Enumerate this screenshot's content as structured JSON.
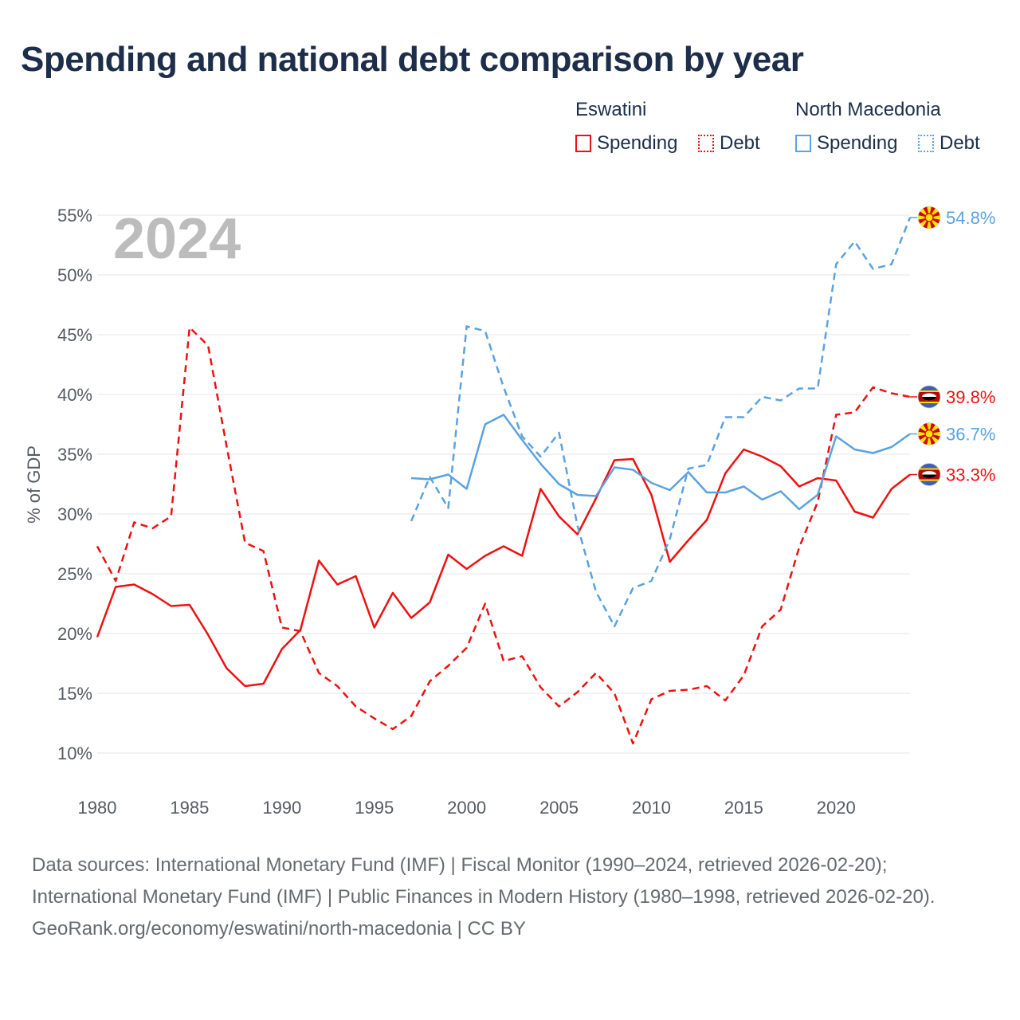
{
  "title": "Spending and national debt comparison by year",
  "legend": {
    "groups": [
      {
        "country": "Eswatini",
        "color": "#ee1111",
        "items": [
          {
            "label": "Spending",
            "style": "solid"
          },
          {
            "label": "Debt",
            "style": "dotted"
          }
        ]
      },
      {
        "country": "North Macedonia",
        "color": "#5aa2e0",
        "items": [
          {
            "label": "Spending",
            "style": "solid"
          },
          {
            "label": "Debt",
            "style": "dotted"
          }
        ]
      }
    ]
  },
  "footer": {
    "sources": "Data sources: International Monetary Fund (IMF) | Fiscal Monitor (1990–2024, retrieved 2026-02-20); International Monetary Fund (IMF) | Public Finances in Modern History (1980–1998, retrieved 2026-02-20).",
    "credit": "GeoRank.org/economy/eswatini/north-macedonia | CC BY"
  },
  "chart_data": {
    "type": "line",
    "title": "Spending and national debt comparison by year",
    "year_watermark": "2024",
    "xlabel": "",
    "ylabel": "% of GDP",
    "xlim": [
      1980,
      2024
    ],
    "ylim": [
      10,
      55
    ],
    "x_ticks": [
      1980,
      1985,
      1990,
      1995,
      2000,
      2005,
      2010,
      2015,
      2020
    ],
    "y_ticks": [
      10,
      15,
      20,
      25,
      30,
      35,
      40,
      45,
      50,
      55
    ],
    "y_tick_suffix": "%",
    "grid": true,
    "series": [
      {
        "name": "Eswatini Spending",
        "country": "Eswatini",
        "flag": "eswatini",
        "color": "#ee1111",
        "dash": "solid",
        "end_label": "33.3%",
        "points": [
          [
            1980,
            19.7
          ],
          [
            1981,
            23.9
          ],
          [
            1982,
            24.1
          ],
          [
            1983,
            23.3
          ],
          [
            1984,
            22.3
          ],
          [
            1985,
            22.4
          ],
          [
            1986,
            19.9
          ],
          [
            1987,
            17.1
          ],
          [
            1988,
            15.6
          ],
          [
            1989,
            15.8
          ],
          [
            1990,
            18.7
          ],
          [
            1991,
            20.3
          ],
          [
            1992,
            26.1
          ],
          [
            1993,
            24.1
          ],
          [
            1994,
            24.8
          ],
          [
            1995,
            20.5
          ],
          [
            1996,
            23.4
          ],
          [
            1997,
            21.3
          ],
          [
            1998,
            22.6
          ],
          [
            1999,
            26.6
          ],
          [
            2000,
            25.4
          ],
          [
            2001,
            26.5
          ],
          [
            2002,
            27.3
          ],
          [
            2003,
            26.5
          ],
          [
            2004,
            32.1
          ],
          [
            2005,
            29.8
          ],
          [
            2006,
            28.3
          ],
          [
            2007,
            31.3
          ],
          [
            2008,
            34.5
          ],
          [
            2009,
            34.6
          ],
          [
            2010,
            31.6
          ],
          [
            2011,
            26.0
          ],
          [
            2012,
            27.8
          ],
          [
            2013,
            29.5
          ],
          [
            2014,
            33.4
          ],
          [
            2015,
            35.4
          ],
          [
            2016,
            34.8
          ],
          [
            2017,
            34.0
          ],
          [
            2018,
            32.3
          ],
          [
            2019,
            33.0
          ],
          [
            2020,
            32.8
          ],
          [
            2021,
            30.2
          ],
          [
            2022,
            29.7
          ],
          [
            2023,
            32.1
          ],
          [
            2024,
            33.3
          ]
        ]
      },
      {
        "name": "Eswatini Debt",
        "country": "Eswatini",
        "flag": "eswatini",
        "color": "#ee1111",
        "dash": "dashed",
        "end_label": "39.8%",
        "points": [
          [
            1980,
            27.3
          ],
          [
            1981,
            24.4
          ],
          [
            1982,
            29.3
          ],
          [
            1983,
            28.8
          ],
          [
            1984,
            29.8
          ],
          [
            1985,
            45.6
          ],
          [
            1986,
            44.1
          ],
          [
            1987,
            35.7
          ],
          [
            1988,
            27.6
          ],
          [
            1989,
            26.9
          ],
          [
            1990,
            20.5
          ],
          [
            1991,
            20.2
          ],
          [
            1992,
            16.7
          ],
          [
            1993,
            15.6
          ],
          [
            1994,
            13.9
          ],
          [
            1995,
            12.9
          ],
          [
            1996,
            12.0
          ],
          [
            1997,
            13.1
          ],
          [
            1998,
            16.0
          ],
          [
            1999,
            17.3
          ],
          [
            2000,
            18.8
          ],
          [
            2001,
            22.5
          ],
          [
            2002,
            17.7
          ],
          [
            2003,
            18.1
          ],
          [
            2004,
            15.5
          ],
          [
            2005,
            13.9
          ],
          [
            2006,
            15.1
          ],
          [
            2007,
            16.7
          ],
          [
            2008,
            15.0
          ],
          [
            2009,
            10.8
          ],
          [
            2010,
            14.5
          ],
          [
            2011,
            15.2
          ],
          [
            2012,
            15.3
          ],
          [
            2013,
            15.6
          ],
          [
            2014,
            14.4
          ],
          [
            2015,
            16.5
          ],
          [
            2016,
            20.6
          ],
          [
            2017,
            22.0
          ],
          [
            2018,
            27.2
          ],
          [
            2019,
            31.0
          ],
          [
            2020,
            38.3
          ],
          [
            2021,
            38.5
          ],
          [
            2022,
            40.6
          ],
          [
            2023,
            40.1
          ],
          [
            2024,
            39.8
          ]
        ]
      },
      {
        "name": "North Macedonia Spending",
        "country": "North Macedonia",
        "flag": "north-macedonia",
        "color": "#5aa2e0",
        "dash": "solid",
        "end_label": "36.7%",
        "points": [
          [
            1997,
            33.0
          ],
          [
            1998,
            32.9
          ],
          [
            1999,
            33.3
          ],
          [
            2000,
            32.1
          ],
          [
            2001,
            37.5
          ],
          [
            2002,
            38.3
          ],
          [
            2003,
            36.2
          ],
          [
            2004,
            34.2
          ],
          [
            2005,
            32.5
          ],
          [
            2006,
            31.6
          ],
          [
            2007,
            31.5
          ],
          [
            2008,
            33.9
          ],
          [
            2009,
            33.7
          ],
          [
            2010,
            32.6
          ],
          [
            2011,
            32.0
          ],
          [
            2012,
            33.5
          ],
          [
            2013,
            31.8
          ],
          [
            2014,
            31.8
          ],
          [
            2015,
            32.3
          ],
          [
            2016,
            31.2
          ],
          [
            2017,
            31.9
          ],
          [
            2018,
            30.4
          ],
          [
            2019,
            31.6
          ],
          [
            2020,
            36.5
          ],
          [
            2021,
            35.4
          ],
          [
            2022,
            35.1
          ],
          [
            2023,
            35.6
          ],
          [
            2024,
            36.7
          ]
        ]
      },
      {
        "name": "North Macedonia Debt",
        "country": "North Macedonia",
        "flag": "north-macedonia",
        "color": "#5aa2e0",
        "dash": "dashed",
        "end_label": "54.8%",
        "points": [
          [
            1997,
            29.4
          ],
          [
            1998,
            33.1
          ],
          [
            1999,
            30.5
          ],
          [
            2000,
            45.7
          ],
          [
            2001,
            45.3
          ],
          [
            2002,
            40.6
          ],
          [
            2003,
            36.5
          ],
          [
            2004,
            34.8
          ],
          [
            2005,
            36.8
          ],
          [
            2006,
            29.0
          ],
          [
            2007,
            23.5
          ],
          [
            2008,
            20.6
          ],
          [
            2009,
            23.8
          ],
          [
            2010,
            24.4
          ],
          [
            2011,
            27.9
          ],
          [
            2012,
            33.8
          ],
          [
            2013,
            34.1
          ],
          [
            2014,
            38.1
          ],
          [
            2015,
            38.1
          ],
          [
            2016,
            39.8
          ],
          [
            2017,
            39.5
          ],
          [
            2018,
            40.5
          ],
          [
            2019,
            40.5
          ],
          [
            2020,
            50.9
          ],
          [
            2021,
            52.8
          ],
          [
            2022,
            50.5
          ],
          [
            2023,
            50.9
          ],
          [
            2024,
            54.8
          ]
        ]
      }
    ]
  }
}
